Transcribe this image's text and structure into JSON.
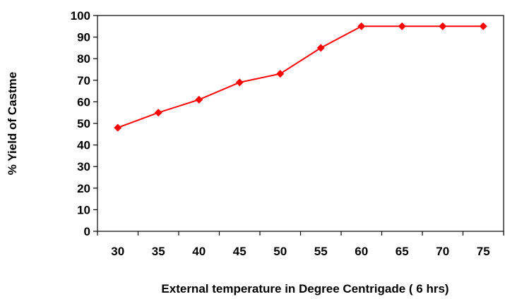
{
  "chart_data": {
    "type": "line",
    "xlabel": "External temperature in Degree Centrigade ( 6 hrs)",
    "ylabel": "% Yield of Castme",
    "x": [
      30,
      35,
      40,
      45,
      50,
      55,
      60,
      65,
      70,
      75
    ],
    "x_tick_labels": [
      "30",
      "35",
      "40",
      "45",
      "50",
      "55",
      "60",
      "65",
      "70",
      "75"
    ],
    "y_tick_labels": [
      "0",
      "10",
      "20",
      "30",
      "40",
      "50",
      "60",
      "70",
      "80",
      "90",
      "100"
    ],
    "ylim": [
      0,
      100
    ],
    "grid": false,
    "legend": "none",
    "series": [
      {
        "values": [
          48,
          55,
          61,
          69,
          73,
          85,
          95,
          95,
          95,
          95
        ],
        "color": "#ff0000",
        "marker": "diamond"
      }
    ]
  }
}
